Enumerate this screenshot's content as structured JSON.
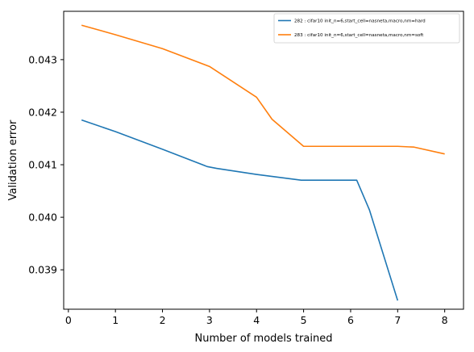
{
  "chart_data": {
    "type": "line",
    "title": "",
    "xlabel": "Number of models trained",
    "ylabel": "Validation error",
    "xlim": [
      -0.1,
      8.4
    ],
    "ylim": [
      0.03825,
      0.04392
    ],
    "xticks": [
      0,
      1,
      2,
      3,
      4,
      5,
      6,
      7,
      8
    ],
    "yticks": [
      0.039,
      0.04,
      0.041,
      0.042,
      0.043
    ],
    "ytick_labels": [
      "0.039",
      "0.040",
      "0.041",
      "0.042",
      "0.043"
    ],
    "grid": false,
    "legend_position": "top-right",
    "series": [
      {
        "name": "282 : cifar10 init_n=6,start_cell=nasneta,macro,nm=hard",
        "color": "#1f77b4",
        "x": [
          0.28,
          1.0,
          2.0,
          2.95,
          3.15,
          4.0,
          4.95,
          6.13,
          6.4,
          7.0
        ],
        "y": [
          0.041851,
          0.04163,
          0.041295,
          0.040965,
          0.04093,
          0.040815,
          0.040705,
          0.040705,
          0.04014,
          0.038415
        ]
      },
      {
        "name": "283 : cifar10 init_n=6,start_cell=nasneta,macro,nm=soft",
        "color": "#ff7f0e",
        "x": [
          0.28,
          1.0,
          2.0,
          3.0,
          4.0,
          4.33,
          5.0,
          6.3,
          7.0,
          7.35,
          8.0
        ],
        "y": [
          0.043655,
          0.043475,
          0.04321,
          0.04287,
          0.042285,
          0.041865,
          0.04135,
          0.04135,
          0.04135,
          0.041335,
          0.041205
        ]
      }
    ]
  }
}
